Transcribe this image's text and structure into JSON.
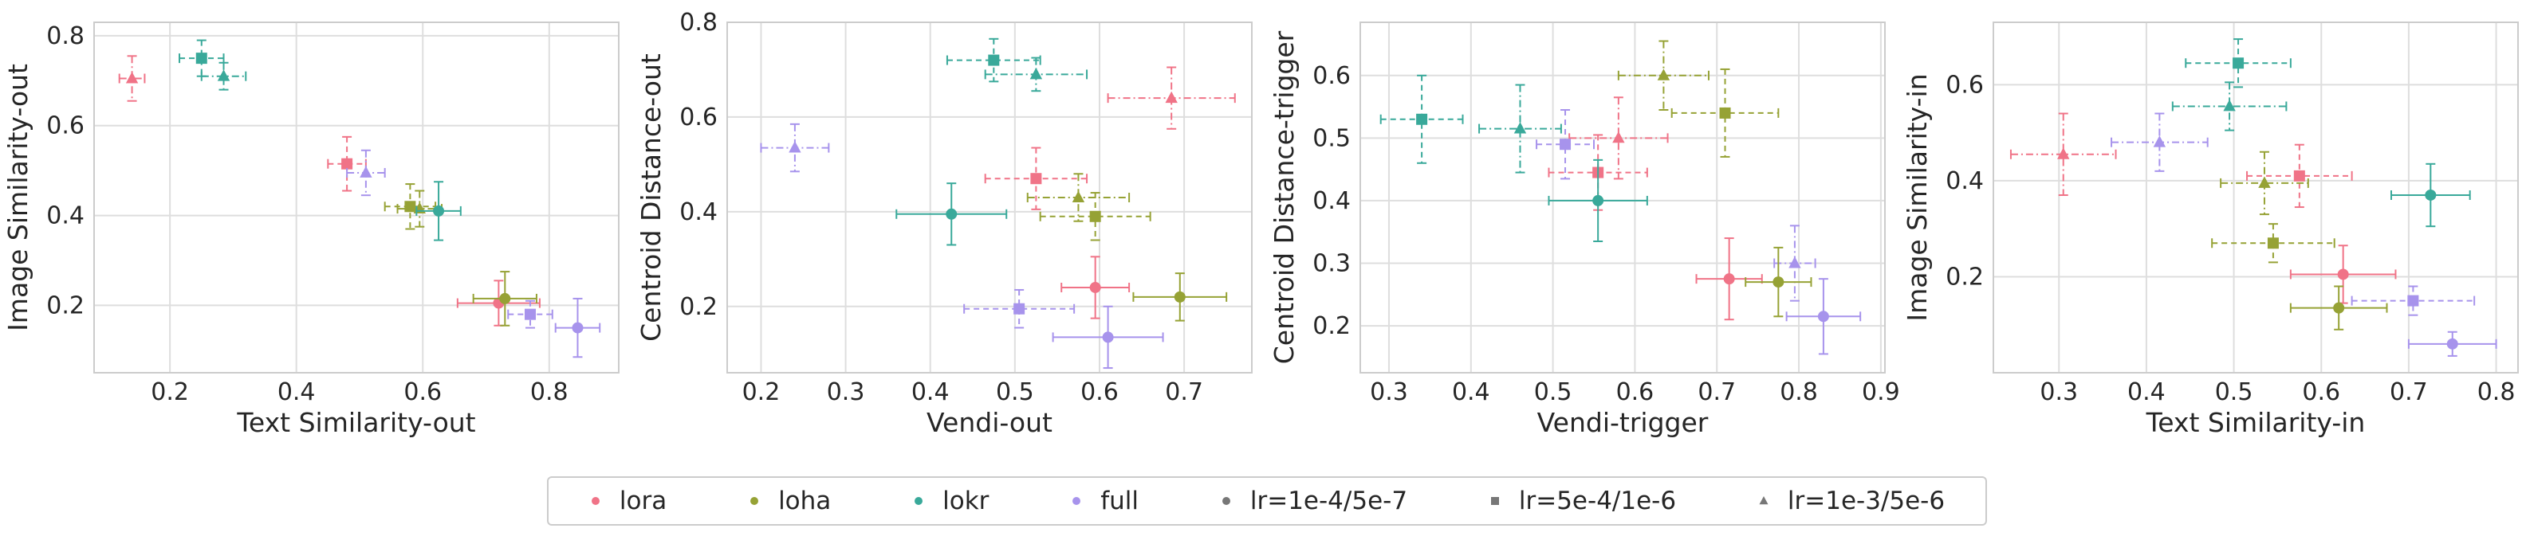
{
  "colors": {
    "lora": "#f07387",
    "loha": "#96a235",
    "lokr": "#39a99a",
    "full": "#a793ec",
    "neutral": "#777777"
  },
  "legend": [
    {
      "label": "lora",
      "kind": "color",
      "color": "#f07387"
    },
    {
      "label": "loha",
      "kind": "color",
      "color": "#96a235"
    },
    {
      "label": "lokr",
      "kind": "color",
      "color": "#39a99a"
    },
    {
      "label": "full",
      "kind": "color",
      "color": "#a793ec"
    },
    {
      "label": "lr=1e-4/5e-7",
      "kind": "marker",
      "marker": "circle"
    },
    {
      "label": "lr=5e-4/1e-6",
      "kind": "marker",
      "marker": "square"
    },
    {
      "label": "lr=1e-3/5e-6",
      "kind": "marker",
      "marker": "triangle"
    }
  ],
  "chart_data": [
    {
      "type": "scatter",
      "xlabel": "Text Similarity-out",
      "ylabel": "Image Similarity-out",
      "xlim": [
        0.08,
        0.91
      ],
      "ylim": [
        0.05,
        0.83
      ],
      "xticks": [
        "0.2",
        "0.4",
        "0.6",
        "0.8"
      ],
      "xtick_values": [
        0.2,
        0.4,
        0.6,
        0.8
      ],
      "yticks": [
        "0.2",
        "0.4",
        "0.6",
        "0.8"
      ],
      "ytick_values": [
        0.2,
        0.4,
        0.6,
        0.8
      ],
      "points": [
        {
          "method": "lora",
          "lr": "1e-3/5e-6",
          "x": 0.14,
          "y": 0.705,
          "xerr": 0.02,
          "yerr": 0.05
        },
        {
          "method": "lokr",
          "lr": "5e-4/1e-6",
          "x": 0.25,
          "y": 0.75,
          "xerr": 0.035,
          "yerr": 0.04
        },
        {
          "method": "lokr",
          "lr": "1e-3/5e-6",
          "x": 0.285,
          "y": 0.71,
          "xerr": 0.035,
          "yerr": 0.03
        },
        {
          "method": "lora",
          "lr": "5e-4/1e-6",
          "x": 0.48,
          "y": 0.515,
          "xerr": 0.03,
          "yerr": 0.06
        },
        {
          "method": "full",
          "lr": "1e-3/5e-6",
          "x": 0.51,
          "y": 0.495,
          "xerr": 0.03,
          "yerr": 0.05
        },
        {
          "method": "loha",
          "lr": "5e-4/1e-6",
          "x": 0.58,
          "y": 0.42,
          "xerr": 0.04,
          "yerr": 0.05
        },
        {
          "method": "loha",
          "lr": "1e-3/5e-6",
          "x": 0.595,
          "y": 0.415,
          "xerr": 0.035,
          "yerr": 0.04
        },
        {
          "method": "lokr",
          "lr": "1e-4/5e-7",
          "x": 0.625,
          "y": 0.41,
          "xerr": 0.035,
          "yerr": 0.065
        },
        {
          "method": "lora",
          "lr": "1e-4/5e-7",
          "x": 0.72,
          "y": 0.205,
          "xerr": 0.065,
          "yerr": 0.05
        },
        {
          "method": "loha",
          "lr": "1e-4/5e-7",
          "x": 0.73,
          "y": 0.215,
          "xerr": 0.05,
          "yerr": 0.06
        },
        {
          "method": "full",
          "lr": "5e-4/1e-6",
          "x": 0.77,
          "y": 0.18,
          "xerr": 0.035,
          "yerr": 0.03
        },
        {
          "method": "full",
          "lr": "1e-4/5e-7",
          "x": 0.845,
          "y": 0.15,
          "xerr": 0.035,
          "yerr": 0.065
        }
      ]
    },
    {
      "type": "scatter",
      "xlabel": "Vendi-out",
      "ylabel": "Centroid Distance-out",
      "xlim": [
        0.16,
        0.78
      ],
      "ylim": [
        0.06,
        0.8
      ],
      "xticks": [
        "0.2",
        "0.3",
        "0.4",
        "0.5",
        "0.6",
        "0.7"
      ],
      "xtick_values": [
        0.2,
        0.3,
        0.4,
        0.5,
        0.6,
        0.7
      ],
      "yticks": [
        "0.2",
        "0.4",
        "0.6",
        "0.8"
      ],
      "ytick_values": [
        0.2,
        0.4,
        0.6,
        0.8
      ],
      "points": [
        {
          "method": "lokr",
          "lr": "5e-4/1e-6",
          "x": 0.475,
          "y": 0.72,
          "xerr": 0.055,
          "yerr": 0.045
        },
        {
          "method": "lokr",
          "lr": "1e-3/5e-6",
          "x": 0.525,
          "y": 0.69,
          "xerr": 0.06,
          "yerr": 0.035
        },
        {
          "method": "lora",
          "lr": "1e-3/5e-6",
          "x": 0.685,
          "y": 0.64,
          "xerr": 0.075,
          "yerr": 0.065
        },
        {
          "method": "full",
          "lr": "1e-3/5e-6",
          "x": 0.24,
          "y": 0.535,
          "xerr": 0.04,
          "yerr": 0.05
        },
        {
          "method": "lora",
          "lr": "5e-4/1e-6",
          "x": 0.525,
          "y": 0.47,
          "xerr": 0.06,
          "yerr": 0.065
        },
        {
          "method": "loha",
          "lr": "1e-3/5e-6",
          "x": 0.575,
          "y": 0.43,
          "xerr": 0.06,
          "yerr": 0.05
        },
        {
          "method": "loha",
          "lr": "5e-4/1e-6",
          "x": 0.595,
          "y": 0.39,
          "xerr": 0.065,
          "yerr": 0.05
        },
        {
          "method": "lokr",
          "lr": "1e-4/5e-7",
          "x": 0.425,
          "y": 0.395,
          "xerr": 0.065,
          "yerr": 0.065
        },
        {
          "method": "lora",
          "lr": "1e-4/5e-7",
          "x": 0.595,
          "y": 0.24,
          "xerr": 0.04,
          "yerr": 0.065
        },
        {
          "method": "loha",
          "lr": "1e-4/5e-7",
          "x": 0.695,
          "y": 0.22,
          "xerr": 0.055,
          "yerr": 0.05
        },
        {
          "method": "full",
          "lr": "5e-4/1e-6",
          "x": 0.505,
          "y": 0.195,
          "xerr": 0.065,
          "yerr": 0.04
        },
        {
          "method": "full",
          "lr": "1e-4/5e-7",
          "x": 0.61,
          "y": 0.135,
          "xerr": 0.065,
          "yerr": 0.065
        }
      ]
    },
    {
      "type": "scatter",
      "xlabel": "Vendi-trigger",
      "ylabel": "Centroid Distance-trigger",
      "xlim": [
        0.265,
        0.905
      ],
      "ylim": [
        0.125,
        0.685
      ],
      "xticks": [
        "0.3",
        "0.4",
        "0.5",
        "0.6",
        "0.7",
        "0.8",
        "0.9"
      ],
      "xtick_values": [
        0.3,
        0.4,
        0.5,
        0.6,
        0.7,
        0.8,
        0.9
      ],
      "yticks": [
        "0.2",
        "0.3",
        "0.4",
        "0.5",
        "0.6"
      ],
      "ytick_values": [
        0.2,
        0.3,
        0.4,
        0.5,
        0.6
      ],
      "points": [
        {
          "method": "loha",
          "lr": "1e-3/5e-6",
          "x": 0.635,
          "y": 0.6,
          "xerr": 0.055,
          "yerr": 0.055
        },
        {
          "method": "loha",
          "lr": "5e-4/1e-6",
          "x": 0.71,
          "y": 0.54,
          "xerr": 0.065,
          "yerr": 0.07
        },
        {
          "method": "lokr",
          "lr": "5e-4/1e-6",
          "x": 0.34,
          "y": 0.53,
          "xerr": 0.05,
          "yerr": 0.07
        },
        {
          "method": "lokr",
          "lr": "1e-3/5e-6",
          "x": 0.46,
          "y": 0.515,
          "xerr": 0.05,
          "yerr": 0.07
        },
        {
          "method": "lora",
          "lr": "1e-3/5e-6",
          "x": 0.58,
          "y": 0.5,
          "xerr": 0.06,
          "yerr": 0.065
        },
        {
          "method": "full",
          "lr": "5e-4/1e-6",
          "x": 0.515,
          "y": 0.49,
          "xerr": 0.035,
          "yerr": 0.055
        },
        {
          "method": "lora",
          "lr": "5e-4/1e-6",
          "x": 0.555,
          "y": 0.445,
          "xerr": 0.06,
          "yerr": 0.06
        },
        {
          "method": "lokr",
          "lr": "1e-4/5e-7",
          "x": 0.555,
          "y": 0.4,
          "xerr": 0.06,
          "yerr": 0.065
        },
        {
          "method": "full",
          "lr": "1e-3/5e-6",
          "x": 0.795,
          "y": 0.3,
          "xerr": 0.025,
          "yerr": 0.06
        },
        {
          "method": "lora",
          "lr": "1e-4/5e-7",
          "x": 0.715,
          "y": 0.275,
          "xerr": 0.04,
          "yerr": 0.065
        },
        {
          "method": "loha",
          "lr": "1e-4/5e-7",
          "x": 0.775,
          "y": 0.27,
          "xerr": 0.04,
          "yerr": 0.055
        },
        {
          "method": "full",
          "lr": "1e-4/5e-7",
          "x": 0.83,
          "y": 0.215,
          "xerr": 0.045,
          "yerr": 0.06
        }
      ]
    },
    {
      "type": "scatter",
      "xlabel": "Text Similarity-in",
      "ylabel": "Image Similarity-in",
      "xlim": [
        0.225,
        0.825
      ],
      "ylim": [
        0.0,
        0.73
      ],
      "xticks": [
        "0.3",
        "0.4",
        "0.5",
        "0.6",
        "0.7",
        "0.8"
      ],
      "xtick_values": [
        0.3,
        0.4,
        0.5,
        0.6,
        0.7,
        0.8
      ],
      "yticks": [
        "0.2",
        "0.4",
        "0.6"
      ],
      "ytick_values": [
        0.2,
        0.4,
        0.6
      ],
      "points": [
        {
          "method": "lokr",
          "lr": "5e-4/1e-6",
          "x": 0.505,
          "y": 0.645,
          "xerr": 0.06,
          "yerr": 0.05
        },
        {
          "method": "lokr",
          "lr": "1e-3/5e-6",
          "x": 0.495,
          "y": 0.555,
          "xerr": 0.065,
          "yerr": 0.05
        },
        {
          "method": "full",
          "lr": "1e-3/5e-6",
          "x": 0.415,
          "y": 0.48,
          "xerr": 0.055,
          "yerr": 0.06
        },
        {
          "method": "lora",
          "lr": "1e-3/5e-6",
          "x": 0.305,
          "y": 0.455,
          "xerr": 0.06,
          "yerr": 0.085
        },
        {
          "method": "lora",
          "lr": "5e-4/1e-6",
          "x": 0.575,
          "y": 0.41,
          "xerr": 0.06,
          "yerr": 0.065
        },
        {
          "method": "loha",
          "lr": "1e-3/5e-6",
          "x": 0.535,
          "y": 0.395,
          "xerr": 0.05,
          "yerr": 0.065
        },
        {
          "method": "lokr",
          "lr": "1e-4/5e-7",
          "x": 0.725,
          "y": 0.37,
          "xerr": 0.045,
          "yerr": 0.065
        },
        {
          "method": "loha",
          "lr": "5e-4/1e-6",
          "x": 0.545,
          "y": 0.27,
          "xerr": 0.07,
          "yerr": 0.04
        },
        {
          "method": "lora",
          "lr": "1e-4/5e-7",
          "x": 0.625,
          "y": 0.205,
          "xerr": 0.06,
          "yerr": 0.06
        },
        {
          "method": "full",
          "lr": "5e-4/1e-6",
          "x": 0.705,
          "y": 0.15,
          "xerr": 0.07,
          "yerr": 0.03
        },
        {
          "method": "loha",
          "lr": "1e-4/5e-7",
          "x": 0.62,
          "y": 0.135,
          "xerr": 0.055,
          "yerr": 0.045
        },
        {
          "method": "full",
          "lr": "1e-4/5e-7",
          "x": 0.75,
          "y": 0.06,
          "xerr": 0.05,
          "yerr": 0.025
        }
      ]
    }
  ]
}
